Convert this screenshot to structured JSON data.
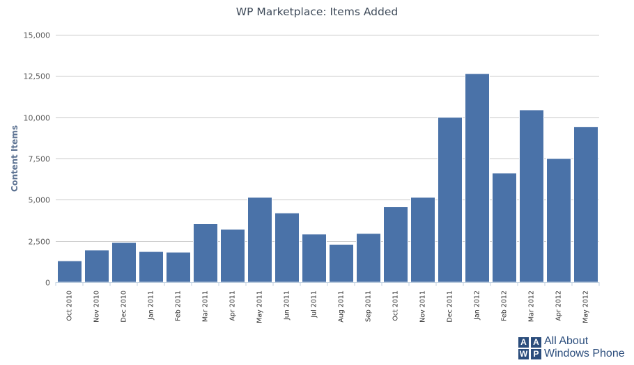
{
  "chart_data": {
    "type": "bar",
    "title": "WP Marketplace: Items Added",
    "xlabel": "",
    "ylabel": "Content Items",
    "ylim": [
      0,
      15000
    ],
    "yticks": [
      0,
      2500,
      5000,
      7500,
      10000,
      12500,
      15000
    ],
    "ytick_labels": [
      "0",
      "2,500",
      "5,000",
      "7,500",
      "10,000",
      "12,500",
      "15,000"
    ],
    "grid": true,
    "legend": "none",
    "bar_color": "#4a72a8",
    "categories": [
      "Oct 2010",
      "Nov 2010",
      "Dec 2010",
      "Jan 2011",
      "Feb 2011",
      "Mar 2011",
      "Apr 2011",
      "May 2011",
      "Jun 2011",
      "Jul 2011",
      "Aug 2011",
      "Sep 2011",
      "Oct 2011",
      "Nov 2011",
      "Dec 2011",
      "Jan 2012",
      "Feb 2012",
      "Mar 2012",
      "Apr 2012",
      "May 2012"
    ],
    "values": [
      1300,
      1950,
      2420,
      1870,
      1820,
      3560,
      3210,
      5150,
      4200,
      2920,
      2300,
      2960,
      4570,
      5150,
      10000,
      12650,
      6620,
      10450,
      7500,
      9420
    ]
  },
  "logo": {
    "box_letters": [
      "A",
      "A",
      "W",
      "P"
    ],
    "line1": "All About",
    "line2": "Windows Phone"
  }
}
